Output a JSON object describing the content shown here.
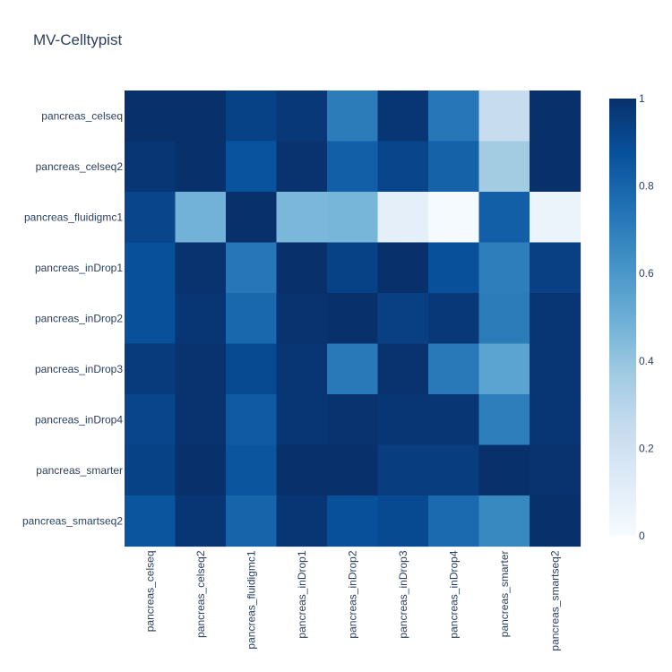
{
  "chart_data": {
    "type": "heatmap",
    "title": "MV-Celltypist",
    "x_categories": [
      "pancreas_celseq",
      "pancreas_celseq2",
      "pancreas_fluidigmc1",
      "pancreas_inDrop1",
      "pancreas_inDrop2",
      "pancreas_inDrop3",
      "pancreas_inDrop4",
      "pancreas_smarter",
      "pancreas_smartseq2"
    ],
    "y_categories": [
      "pancreas_celseq",
      "pancreas_celseq2",
      "pancreas_fluidigmc1",
      "pancreas_inDrop1",
      "pancreas_inDrop2",
      "pancreas_inDrop3",
      "pancreas_inDrop4",
      "pancreas_smarter",
      "pancreas_smartseq2"
    ],
    "z": [
      [
        1.0,
        1.0,
        0.93,
        0.97,
        0.71,
        0.98,
        0.73,
        0.24,
        1.0
      ],
      [
        0.98,
        1.0,
        0.87,
        0.99,
        0.82,
        0.92,
        0.81,
        0.36,
        1.0
      ],
      [
        0.92,
        0.48,
        1.0,
        0.46,
        0.47,
        0.09,
        0.01,
        0.82,
        0.06
      ],
      [
        0.88,
        0.99,
        0.73,
        1.0,
        0.93,
        1.0,
        0.88,
        0.7,
        0.94
      ],
      [
        0.88,
        0.98,
        0.79,
        0.99,
        1.0,
        0.94,
        0.97,
        0.71,
        0.98
      ],
      [
        0.96,
        0.99,
        0.9,
        0.98,
        0.72,
        0.99,
        0.72,
        0.55,
        0.98
      ],
      [
        0.92,
        0.99,
        0.84,
        0.98,
        0.99,
        0.98,
        0.98,
        0.7,
        0.98
      ],
      [
        0.93,
        1.0,
        0.86,
        1.0,
        1.0,
        0.95,
        0.95,
        1.0,
        0.99
      ],
      [
        0.86,
        0.98,
        0.8,
        0.98,
        0.88,
        0.9,
        0.78,
        0.66,
        1.0
      ]
    ],
    "zmin": 0,
    "zmax": 1,
    "colorscale_name": "Blues",
    "colorscale_stops": [
      "#f7fbff",
      "#deebf7",
      "#c6dbef",
      "#9ecae1",
      "#6baed6",
      "#4292c6",
      "#2171b5",
      "#08519c",
      "#08306b"
    ],
    "colorbar_ticks": [
      "0",
      "0.2",
      "0.4",
      "0.6",
      "0.8",
      "1"
    ],
    "colorbar_tick_values": [
      0,
      0.2,
      0.4,
      0.6,
      0.8,
      1
    ],
    "grid": false
  }
}
